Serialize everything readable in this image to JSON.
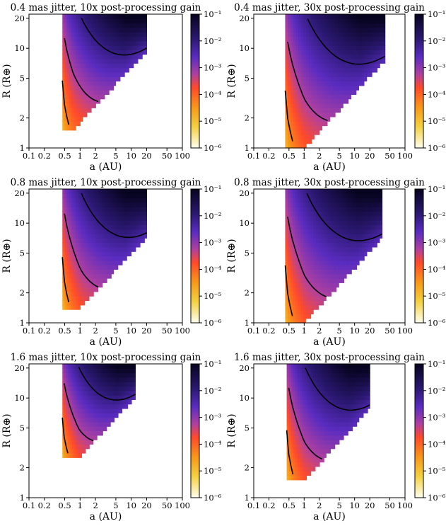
{
  "colorbar": {
    "ticks": [
      "10⁻¹",
      "10⁻²",
      "10⁻³",
      "10⁻⁴",
      "10⁻⁵",
      "10⁻⁶"
    ],
    "ticks_values": [
      0.1,
      0.01,
      0.001,
      0.0001,
      1e-05,
      1e-06
    ],
    "colors": [
      "#0a0525",
      "#3a1f8f",
      "#6b33c8",
      "#ff4530",
      "#f0a020",
      "#fdfacc",
      "#ffffff"
    ]
  },
  "chart_data": [
    {
      "type": "heatmap",
      "title": "0.4 mas jitter, 10x post-processing gain",
      "xlabel": "a (AU)",
      "ylabel": "R (R⊕)",
      "xscale": "log",
      "yscale": "log",
      "xlim": [
        0.1,
        100
      ],
      "ylim": [
        1,
        22
      ],
      "xticks": [
        "0.1",
        "0.2",
        "0.5",
        "1",
        "2",
        "5",
        "10",
        "20",
        "50",
        "100"
      ],
      "xticks_values": [
        0.1,
        0.2,
        0.5,
        1,
        2,
        5,
        10,
        20,
        50,
        100
      ],
      "yticks": [
        "1",
        "2",
        "5",
        "10",
        "20"
      ],
      "yticks_values": [
        1,
        2,
        5,
        10,
        20
      ],
      "colorbar_range": [
        1e-06,
        0.1
      ],
      "region_a_min": 0.45,
      "region_a_max": 20,
      "region_r_min_at_a1": 1.8,
      "region_floor_R": 1.5
    },
    {
      "type": "heatmap",
      "title": "0.4 mas jitter, 30x post-processing gain",
      "xlabel": "a (AU)",
      "ylabel": "R (R⊕)",
      "xscale": "log",
      "yscale": "log",
      "xlim": [
        0.1,
        100
      ],
      "ylim": [
        1,
        22
      ],
      "xticks": [
        "0.1",
        "0.2",
        "0.5",
        "1",
        "2",
        "5",
        "10",
        "20",
        "50",
        "100"
      ],
      "xticks_values": [
        0.1,
        0.2,
        0.5,
        1,
        2,
        5,
        10,
        20,
        50,
        100
      ],
      "yticks": [
        "1",
        "2",
        "5",
        "10",
        "20"
      ],
      "yticks_values": [
        1,
        2,
        5,
        10,
        20
      ],
      "colorbar_range": [
        1e-06,
        0.1
      ],
      "region_a_min": 0.42,
      "region_a_max": 40,
      "region_r_min_at_a1": 1.0,
      "region_floor_R": 1.0
    },
    {
      "type": "heatmap",
      "title": "0.8 mas jitter, 10x post-processing gain",
      "xlabel": "a (AU)",
      "ylabel": "R (R⊕)",
      "xscale": "log",
      "yscale": "log",
      "xlim": [
        0.1,
        100
      ],
      "ylim": [
        1,
        22
      ],
      "xticks": [
        "0.1",
        "0.2",
        "0.5",
        "1",
        "2",
        "5",
        "10",
        "20",
        "50",
        "100"
      ],
      "xticks_values": [
        0.1,
        0.2,
        0.5,
        1,
        2,
        5,
        10,
        20,
        50,
        100
      ],
      "yticks": [
        "1",
        "2",
        "5",
        "10",
        "20"
      ],
      "yticks_values": [
        1,
        2,
        5,
        10,
        20
      ],
      "colorbar_range": [
        1e-06,
        0.1
      ],
      "region_a_min": 0.45,
      "region_a_max": 20,
      "region_r_min_at_a1": 1.4,
      "region_floor_R": 1.4
    },
    {
      "type": "heatmap",
      "title": "0.8 mas jitter, 30x post-processing gain",
      "xlabel": "a (AU)",
      "ylabel": "R (R⊕)",
      "xscale": "log",
      "yscale": "log",
      "xlim": [
        0.1,
        100
      ],
      "ylim": [
        1,
        22
      ],
      "xticks": [
        "0.1",
        "0.2",
        "0.5",
        "1",
        "2",
        "5",
        "10",
        "20",
        "50",
        "100"
      ],
      "xticks_values": [
        0.1,
        0.2,
        0.5,
        1,
        2,
        5,
        10,
        20,
        50,
        100
      ],
      "yticks": [
        "1",
        "2",
        "5",
        "10",
        "20"
      ],
      "yticks_values": [
        1,
        2,
        5,
        10,
        20
      ],
      "colorbar_range": [
        1e-06,
        0.1
      ],
      "region_a_min": 0.42,
      "region_a_max": 35,
      "region_r_min_at_a1": 1.0,
      "region_floor_R": 1.0
    },
    {
      "type": "heatmap",
      "title": "1.6 mas jitter, 10x post-processing gain",
      "xlabel": "a (AU)",
      "ylabel": "R (R⊕)",
      "xscale": "log",
      "yscale": "log",
      "xlim": [
        0.1,
        100
      ],
      "ylim": [
        1,
        22
      ],
      "xticks": [
        "0.1",
        "0.2",
        "0.5",
        "1",
        "2",
        "5",
        "10",
        "20",
        "50",
        "100"
      ],
      "xticks_values": [
        0.1,
        0.2,
        0.5,
        1,
        2,
        5,
        10,
        20,
        50,
        100
      ],
      "yticks": [
        "1",
        "2",
        "5",
        "10",
        "20"
      ],
      "yticks_values": [
        1,
        2,
        5,
        10,
        20
      ],
      "colorbar_range": [
        1e-06,
        0.1
      ],
      "region_a_min": 0.45,
      "region_a_max": 12,
      "region_r_min_at_a1": 2.6,
      "region_floor_R": 2.5
    },
    {
      "type": "heatmap",
      "title": "1.6 mas jitter, 30x post-processing gain",
      "xlabel": "a (AU)",
      "ylabel": "R (R⊕)",
      "xscale": "log",
      "yscale": "log",
      "xlim": [
        0.1,
        100
      ],
      "ylim": [
        1,
        22
      ],
      "xticks": [
        "0.1",
        "0.2",
        "0.5",
        "1",
        "2",
        "5",
        "10",
        "20",
        "50",
        "100"
      ],
      "xticks_values": [
        0.1,
        0.2,
        0.5,
        1,
        2,
        5,
        10,
        20,
        50,
        100
      ],
      "yticks": [
        "1",
        "2",
        "5",
        "10",
        "20"
      ],
      "yticks_values": [
        1,
        2,
        5,
        10,
        20
      ],
      "colorbar_range": [
        1e-06,
        0.1
      ],
      "region_a_min": 0.45,
      "region_a_max": 20,
      "region_r_min_at_a1": 1.5,
      "region_floor_R": 1.5
    }
  ]
}
